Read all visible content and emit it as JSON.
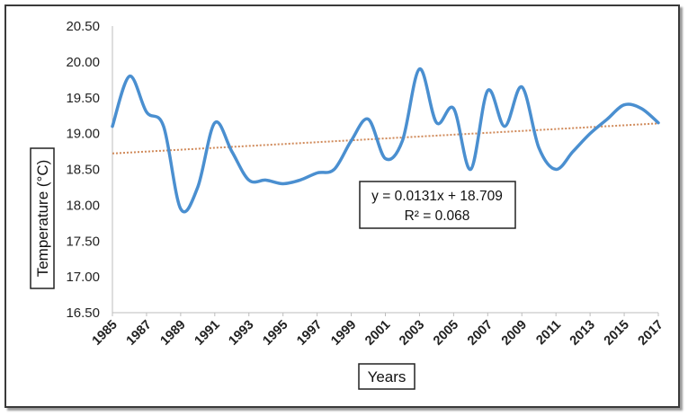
{
  "chart_data": {
    "type": "line",
    "title": "",
    "xlabel": "Years",
    "ylabel": "Temperature (°C)",
    "ylim": [
      16.5,
      20.5
    ],
    "yticks": [
      "16.50",
      "17.00",
      "17.50",
      "18.00",
      "18.50",
      "19.00",
      "19.50",
      "20.00",
      "20.50"
    ],
    "xticks": [
      "1985",
      "1987",
      "1989",
      "1991",
      "1993",
      "1995",
      "1997",
      "1999",
      "2001",
      "2003",
      "2005",
      "2007",
      "2009",
      "2011",
      "2013",
      "2015",
      "2017"
    ],
    "x": [
      1985,
      1986,
      1987,
      1988,
      1989,
      1990,
      1991,
      1992,
      1993,
      1994,
      1995,
      1996,
      1997,
      1998,
      1999,
      2000,
      2001,
      2002,
      2003,
      2004,
      2005,
      2006,
      2007,
      2008,
      2009,
      2010,
      2011,
      2012,
      2013,
      2014,
      2015,
      2016,
      2017
    ],
    "series": [
      {
        "values": [
          19.1,
          19.8,
          19.3,
          19.1,
          17.95,
          18.25,
          19.15,
          18.75,
          18.35,
          18.35,
          18.3,
          18.35,
          18.45,
          18.5,
          18.9,
          19.2,
          18.65,
          18.9,
          19.9,
          19.15,
          19.35,
          18.5,
          19.6,
          19.1,
          19.65,
          18.8,
          18.5,
          18.75,
          19.0,
          19.2,
          19.4,
          19.35,
          19.15
        ],
        "color": "#4a8fd0"
      }
    ],
    "trendline": {
      "equation": "y = 0.0131x + 18.709",
      "r2": "R² = 0.068",
      "slope": 0.0131,
      "intercept": 18.709,
      "color": "#d08a5a"
    },
    "grid": false
  }
}
